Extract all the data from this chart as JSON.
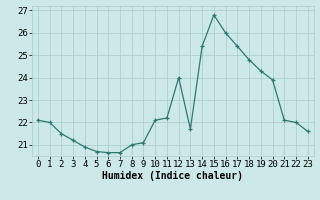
{
  "x": [
    0,
    1,
    2,
    3,
    4,
    5,
    6,
    7,
    8,
    9,
    10,
    11,
    12,
    13,
    14,
    15,
    16,
    17,
    18,
    19,
    20,
    21,
    22,
    23
  ],
  "y": [
    22.1,
    22.0,
    21.5,
    21.2,
    20.9,
    20.7,
    20.65,
    20.65,
    21.0,
    21.1,
    22.1,
    22.2,
    24.0,
    21.7,
    25.4,
    26.8,
    26.0,
    25.4,
    24.8,
    24.3,
    23.9,
    22.1,
    22.0,
    21.6
  ],
  "xlabel": "Humidex (Indice chaleur)",
  "ylim": [
    20.5,
    27.2
  ],
  "xlim": [
    -0.5,
    23.5
  ],
  "yticks": [
    21,
    22,
    23,
    24,
    25,
    26,
    27
  ],
  "xticks": [
    0,
    1,
    2,
    3,
    4,
    5,
    6,
    7,
    8,
    9,
    10,
    11,
    12,
    13,
    14,
    15,
    16,
    17,
    18,
    19,
    20,
    21,
    22,
    23
  ],
  "line_color": "#2d7a6e",
  "marker": "+",
  "bg_color": "#cce8e8",
  "grid_color": "#aacccc",
  "xlabel_fontsize": 7,
  "tick_fontsize": 6.5
}
